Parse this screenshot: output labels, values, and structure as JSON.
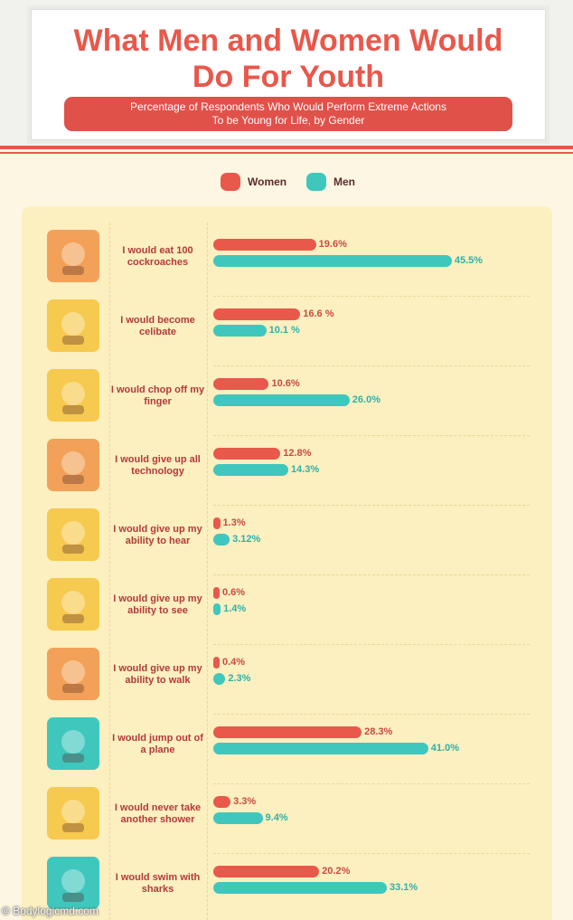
{
  "header": {
    "title_line1": "What Men and Women Would",
    "title_line2": "Do For Youth",
    "subtitle_line1": "Percentage of Respondents Who Would Perform Extreme Actions",
    "subtitle_line2": "To be Young for Life, by Gender"
  },
  "legend": {
    "women": "Women",
    "men": "Men"
  },
  "colors": {
    "women": "#e8584b",
    "men": "#3fc7bd",
    "title": "#e8584b",
    "panel": "#fcefc0"
  },
  "watermark": "Bodylogicmd.com",
  "rows": [
    {
      "label": "I would eat 100 cockroaches",
      "icon": "cockroach-icon",
      "women_text": "19.6%",
      "men_text": "45.5%"
    },
    {
      "label": "I would become celibate",
      "icon": "priest-icon",
      "women_text": "16.6 %",
      "men_text": "10.1 %"
    },
    {
      "label": "I would chop off my finger",
      "icon": "severed-finger-icon",
      "women_text": "10.6%",
      "men_text": "26.0%"
    },
    {
      "label": "I would give up all technology",
      "icon": "computer-icon",
      "women_text": "12.8%",
      "men_text": "14.3%"
    },
    {
      "label": "I would give up my ability to hear",
      "icon": "deaf-woman-icon",
      "women_text": "1.3%",
      "men_text": "3.12%"
    },
    {
      "label": "I would give up my ability to see",
      "icon": "blind-man-icon",
      "women_text": "0.6%",
      "men_text": "1.4%"
    },
    {
      "label": "I would give up my ability to walk",
      "icon": "wheelchair-icon",
      "women_text": "0.4%",
      "men_text": "2.3%"
    },
    {
      "label": "I would jump out of a plane",
      "icon": "skydiving-icon",
      "women_text": "28.3%",
      "men_text": "41.0%"
    },
    {
      "label": "I would never take another shower",
      "icon": "smelly-woman-icon",
      "women_text": "3.3%",
      "men_text": "9.4%"
    },
    {
      "label": "I would swim with sharks",
      "icon": "shark-icon",
      "women_text": "20.2%",
      "men_text": "33.1%"
    }
  ],
  "chart_data": {
    "type": "bar",
    "orientation": "horizontal",
    "title": "What Men and Women Would Do For Youth",
    "subtitle": "Percentage of Respondents Who Would Perform Extreme Actions To be Young for Life, by Gender",
    "categories": [
      "I would eat 100 cockroaches",
      "I would become celibate",
      "I would chop off my finger",
      "I would give up all technology",
      "I would give up my ability to hear",
      "I would give up my ability to see",
      "I would give up my ability to walk",
      "I would jump out of a plane",
      "I would never take another shower",
      "I would swim with sharks"
    ],
    "series": [
      {
        "name": "Women",
        "color": "#e8584b",
        "values": [
          19.6,
          16.6,
          10.6,
          12.8,
          1.3,
          0.6,
          0.4,
          28.3,
          3.3,
          20.2
        ]
      },
      {
        "name": "Men",
        "color": "#3fc7bd",
        "values": [
          45.5,
          10.1,
          26.0,
          14.3,
          3.12,
          1.4,
          2.3,
          41.0,
          9.4,
          33.1
        ]
      }
    ],
    "legend": "top",
    "grid": false
  }
}
